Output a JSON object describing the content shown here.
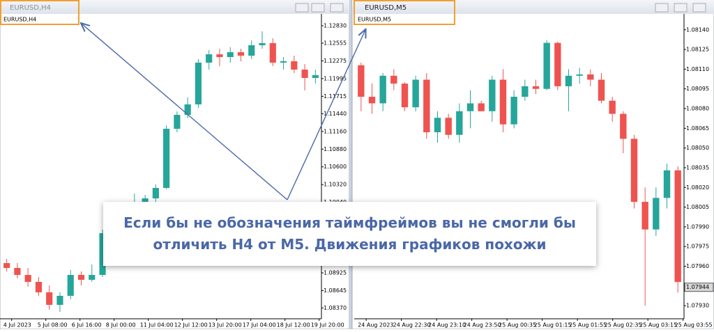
{
  "windows": [
    {
      "title": "EURUSD,H4",
      "symbol": "EURUSD,H4",
      "ylim": [
        1.08199,
        1.12995
      ],
      "yticks": [
        {
          "value": 1.1283,
          "label": "1.12830"
        },
        1.12555,
        1.12275,
        1.11995,
        1.11715,
        {
          "value": 1.1144,
          "label": "1.11440"
        },
        {
          "value": 1.1116,
          "label": "1.11160"
        },
        {
          "value": 1.1088,
          "label": "1.10880"
        },
        {
          "value": 1.106,
          "label": "1.10600"
        },
        {
          "value": 1.1032,
          "label": "1.10320"
        },
        {
          "value": 1.1004,
          "label": "1.10040"
        },
        1.08925,
        1.08645,
        {
          "value": 1.0837,
          "label": "1.08370"
        }
      ],
      "time_labels": [
        "4 Jul 2023",
        "5 Jul 08:00",
        "6 Jul 16:00",
        "8 Jul 00:00",
        "11 Jul 04:00",
        "12 Jul 12:00",
        "13 Jul 20:00",
        "17 Jul 04:00",
        "18 Jul 12:00",
        "19 Jul 20:00"
      ],
      "candles": [
        [
          1.09079,
          1.09145,
          1.08947,
          1.09002
        ],
        [
          1.09002,
          1.09079,
          1.08837,
          1.08892
        ],
        [
          1.08892,
          1.09002,
          1.08705,
          1.08782
        ],
        [
          1.08782,
          1.08859,
          1.08562,
          1.08617
        ],
        [
          1.08617,
          1.08727,
          1.08342,
          1.08419
        ],
        [
          1.08419,
          1.08617,
          1.08309,
          1.08562
        ],
        [
          1.08562,
          1.08969,
          1.08507,
          1.08892
        ],
        [
          1.08892,
          1.08947,
          1.08727,
          1.08815
        ],
        [
          1.08815,
          1.09057,
          1.08782,
          1.08892
        ],
        [
          1.08892,
          1.09607,
          1.08859,
          1.09552
        ],
        [
          1.09552,
          1.09827,
          1.09497,
          1.09739
        ],
        [
          1.09739,
          1.09937,
          1.09662,
          1.09882
        ],
        [
          1.09882,
          1.10179,
          1.09827,
          1.10047
        ],
        [
          1.10047,
          1.10157,
          1.09937,
          1.10102
        ],
        [
          1.10102,
          1.10322,
          1.10047,
          1.10267
        ],
        [
          1.10267,
          1.11257,
          1.10245,
          1.11202
        ],
        [
          1.11202,
          1.11477,
          1.11147,
          1.11422
        ],
        [
          1.11422,
          1.11697,
          1.11367,
          1.11587
        ],
        [
          1.11587,
          1.12302,
          1.11532,
          1.12247
        ],
        [
          1.12247,
          1.12445,
          1.12137,
          1.12379
        ],
        [
          1.12379,
          1.12467,
          1.12192,
          1.12335
        ],
        [
          1.12335,
          1.12489,
          1.12247,
          1.12412
        ],
        [
          1.12412,
          1.12467,
          1.12269,
          1.12357
        ],
        [
          1.12357,
          1.12599,
          1.12302,
          1.12522
        ],
        [
          1.12522,
          1.12742,
          1.12467,
          1.12555
        ],
        [
          1.12555,
          1.12632,
          1.12192,
          1.12247
        ],
        [
          1.12247,
          1.12335,
          1.12137,
          1.12269
        ],
        [
          1.12269,
          1.12357,
          1.12082,
          1.12137
        ],
        [
          1.12137,
          1.12225,
          1.11807,
          1.12005
        ],
        [
          1.12005,
          1.12137,
          1.11917,
          1.12049
        ]
      ]
    },
    {
      "title": "EURUSD,M5",
      "symbol": "EURUSD,M5",
      "ylim": [
        1.0792,
        1.08151
      ],
      "yticks": [
        {
          "value": 1.0814,
          "label": "1.08140"
        },
        1.08125,
        {
          "value": 1.0811,
          "label": "1.08110"
        },
        1.08095,
        {
          "value": 1.0808,
          "label": "1.08080"
        },
        1.08065,
        {
          "value": 1.0805,
          "label": "1.08050"
        },
        1.08035,
        {
          "value": 1.0802,
          "label": "1.08020"
        },
        1.08005,
        {
          "value": 1.0799,
          "label": "1.07990"
        },
        1.07975,
        {
          "value": 1.0796,
          "label": "1.07960"
        },
        {
          "value": 1.0793,
          "label": "1.07930"
        }
      ],
      "current_price": 1.07944,
      "time_labels": [
        "24 Aug 2023",
        "24 Aug 22:30",
        "24 Aug 23:10",
        "24 Aug 23:50",
        "25 Aug 00:35",
        "25 Aug 01:15",
        "25 Aug 01:55",
        "25 Aug 02:35",
        "25 Aug 03:15",
        "25 Aug 03:55"
      ],
      "candles": [
        [
          1.08113,
          1.08115,
          1.08078,
          1.08089
        ],
        [
          1.08089,
          1.08099,
          1.08076,
          1.08084
        ],
        [
          1.08084,
          1.08107,
          1.08078,
          1.08105
        ],
        [
          1.08105,
          1.0811,
          1.08094,
          1.08099
        ],
        [
          1.08099,
          1.081,
          1.08078,
          1.08081
        ],
        [
          1.08081,
          1.08105,
          1.08078,
          1.08102
        ],
        [
          1.08102,
          1.08107,
          1.08057,
          1.08062
        ],
        [
          1.08062,
          1.08078,
          1.08054,
          1.08073
        ],
        [
          1.08073,
          1.08076,
          1.08057,
          1.0806
        ],
        [
          1.0806,
          1.08084,
          1.08054,
          1.08078
        ],
        [
          1.08078,
          1.08094,
          1.08065,
          1.08084
        ],
        [
          1.08084,
          1.08086,
          1.08078,
          1.08078
        ],
        [
          1.08078,
          1.08105,
          1.0807,
          1.08102
        ],
        [
          1.08102,
          1.0811,
          1.08062,
          1.08068
        ],
        [
          1.08068,
          1.08094,
          1.08065,
          1.08089
        ],
        [
          1.08089,
          1.08102,
          1.08086,
          1.08097
        ],
        [
          1.08097,
          1.08102,
          1.08091,
          1.08095
        ],
        [
          1.08095,
          1.08132,
          1.08094,
          1.0813
        ],
        [
          1.0813,
          1.08131,
          1.08094,
          1.08097
        ],
        [
          1.08097,
          1.0811,
          1.08078,
          1.08105
        ],
        [
          1.08105,
          1.08111,
          1.08099,
          1.08106
        ],
        [
          1.08106,
          1.0811,
          1.08097,
          1.08102
        ],
        [
          1.08102,
          1.08107,
          1.08084,
          1.08086
        ],
        [
          1.08086,
          1.08089,
          1.0807,
          1.08076
        ],
        [
          1.08076,
          1.08078,
          1.08046,
          1.08057
        ],
        [
          1.08057,
          1.0806,
          1.08004,
          1.08009
        ],
        [
          1.08009,
          1.0802,
          1.0793,
          1.07988
        ],
        [
          1.07988,
          1.0802,
          1.07983,
          1.08012
        ],
        [
          1.08012,
          1.08038,
          1.08004,
          1.08033
        ],
        [
          1.08033,
          1.08036,
          1.0794,
          1.07948
        ]
      ]
    }
  ],
  "colors": {
    "up": "#26a69a",
    "down": "#ef5350"
  },
  "annotation": {
    "lines": [
      "Если бы не обозначения таймфреймов вы не смогли бы",
      "отличить H4 от M5. Движения графиков похожи"
    ]
  }
}
